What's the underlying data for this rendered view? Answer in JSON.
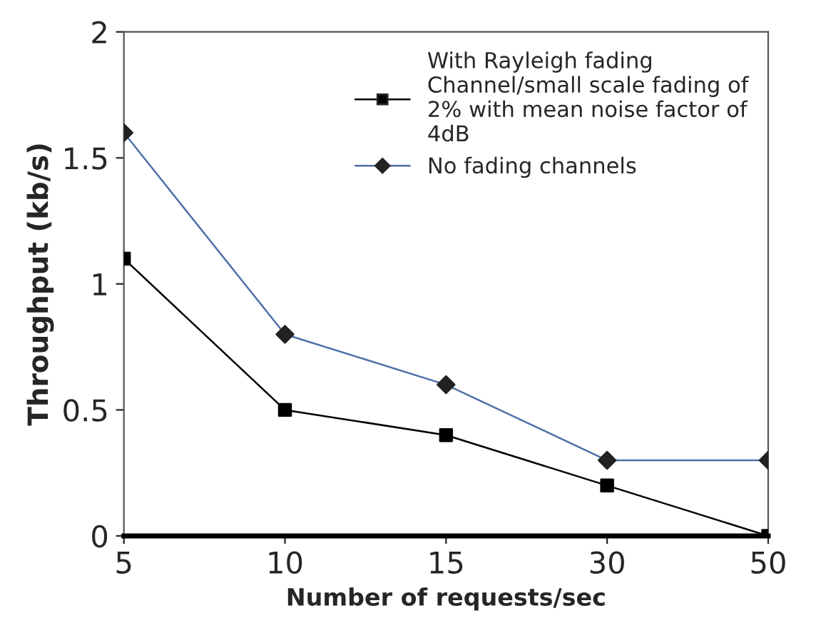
{
  "chart_data": {
    "type": "line",
    "xlabel": "Number of requests/sec",
    "ylabel": "Throughput (kb/s)",
    "categories": [
      "5",
      "10",
      "15",
      "30",
      "50"
    ],
    "series": [
      {
        "name": "With Rayleigh fading\nChannel/small scale fading of\n2% with mean noise factor of\n4dB",
        "color": "#000000",
        "marker": "square",
        "values": [
          1.1,
          0.5,
          0.4,
          0.2,
          0.0
        ]
      },
      {
        "name": "No fading channels",
        "color": "#4f6fa8",
        "marker": "diamond",
        "values": [
          1.6,
          0.8,
          0.6,
          0.3,
          0.3
        ]
      }
    ],
    "ylim": [
      0,
      2
    ],
    "yticks": [
      0,
      0.5,
      1,
      1.5,
      2
    ],
    "grid": false,
    "legend": "top right"
  }
}
